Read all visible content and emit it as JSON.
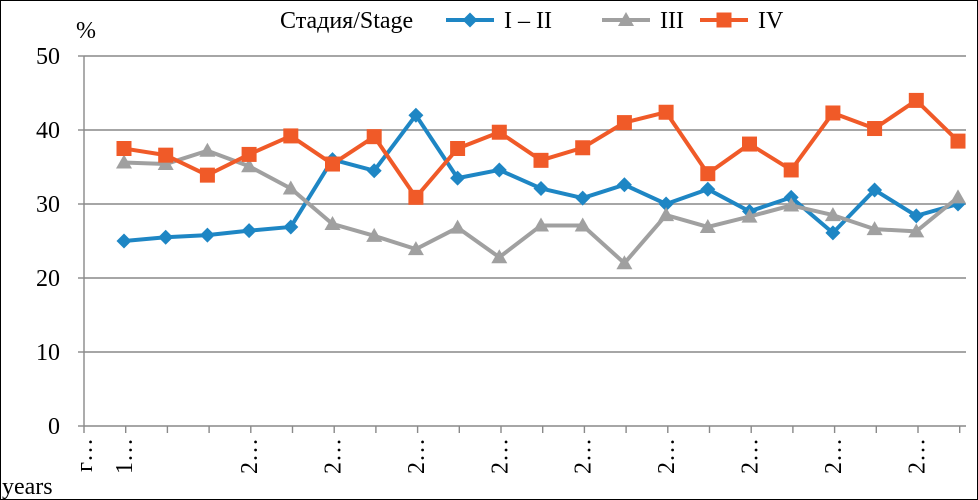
{
  "chart_data": {
    "type": "line",
    "title": "",
    "ylabel": "%",
    "xlabel": "years",
    "ylim": [
      0,
      50
    ],
    "yticks": [
      0,
      10,
      20,
      30,
      40,
      50
    ],
    "grid": "horizontal",
    "legend": {
      "title": "Стадия/Stage",
      "position": "top",
      "entries": [
        "I – II",
        "III",
        "IV"
      ]
    },
    "x_tick_labels": [
      "г…",
      "1…",
      "2…",
      "2…",
      "2…",
      "2…",
      "2…",
      "2…",
      "2…",
      "2…",
      "2…"
    ],
    "x_count": 21,
    "series": [
      {
        "name": "I – II",
        "color": "#1e86c4",
        "marker": "diamond",
        "values": [
          25.0,
          25.5,
          25.8,
          26.4,
          26.9,
          36.0,
          34.5,
          42.0,
          33.5,
          34.6,
          32.1,
          30.8,
          32.6,
          30.0,
          32.0,
          29.0,
          30.9,
          26.1,
          31.9,
          28.4,
          30.0
        ]
      },
      {
        "name": "III",
        "color": "#a0a0a0",
        "marker": "triangle",
        "values": [
          35.6,
          35.4,
          37.2,
          35.1,
          32.1,
          27.3,
          25.7,
          23.9,
          26.8,
          22.8,
          27.1,
          27.1,
          22.0,
          28.5,
          26.9,
          28.3,
          29.8,
          28.5,
          26.6,
          26.3,
          30.9
        ]
      },
      {
        "name": "IV",
        "color": "#f05a28",
        "marker": "square",
        "values": [
          37.5,
          36.6,
          33.9,
          36.7,
          39.2,
          35.4,
          39.1,
          30.9,
          37.5,
          39.7,
          35.9,
          37.6,
          41.0,
          42.4,
          34.1,
          38.1,
          34.6,
          42.3,
          40.2,
          44.0,
          38.5
        ]
      }
    ]
  }
}
